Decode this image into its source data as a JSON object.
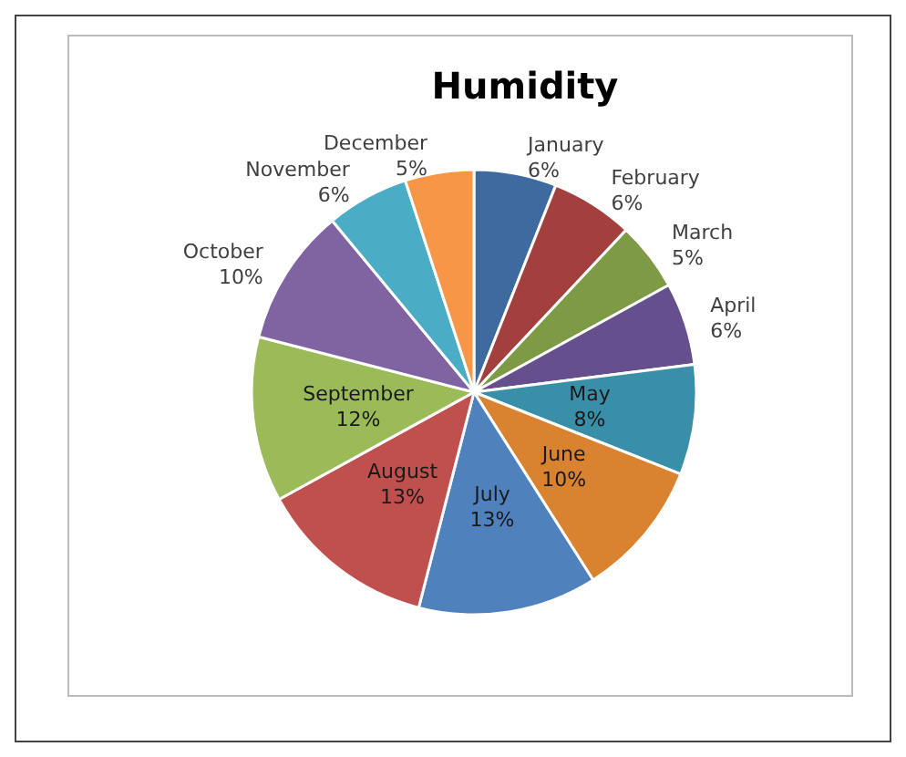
{
  "chart_data": {
    "type": "pie",
    "title": "Humidity",
    "categories": [
      "January",
      "February",
      "March",
      "April",
      "May",
      "June",
      "July",
      "August",
      "September",
      "October",
      "November",
      "December"
    ],
    "values": [
      6,
      6,
      5,
      6,
      8,
      10,
      13,
      13,
      12,
      10,
      6,
      5
    ],
    "value_labels": [
      "6%",
      "6%",
      "5%",
      "6%",
      "8%",
      "10%",
      "13%",
      "13%",
      "12%",
      "10%",
      "6%",
      "5%"
    ],
    "colors": [
      "#3f6aa0",
      "#a3403d",
      "#7d9a45",
      "#654f8c",
      "#3a8fa8",
      "#d9822f",
      "#4f81bd",
      "#c0504d",
      "#9bbb59",
      "#8064a2",
      "#4bacc6",
      "#f79646"
    ],
    "legend": false
  }
}
